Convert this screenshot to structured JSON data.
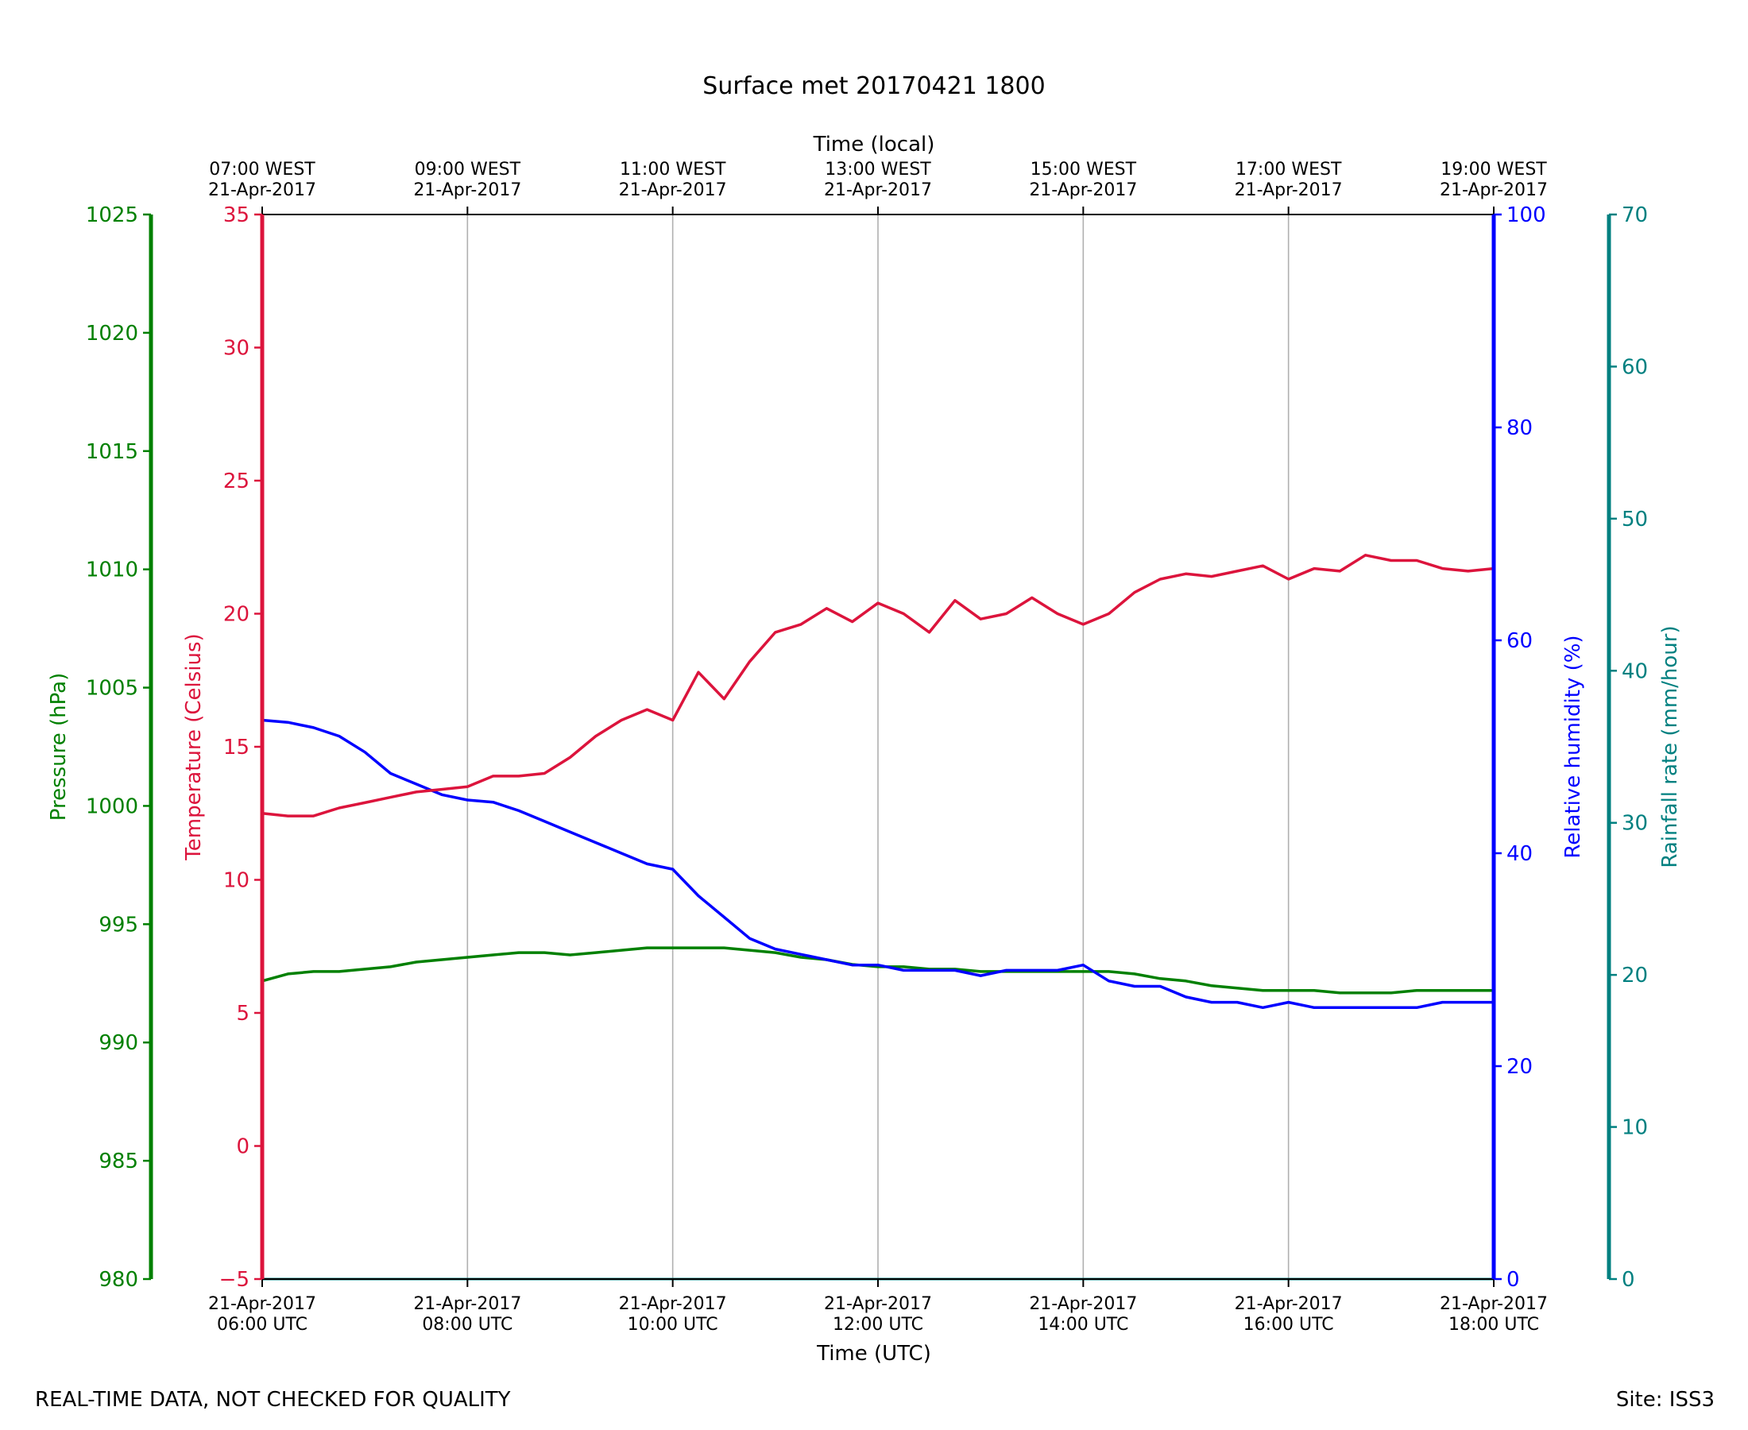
{
  "chart_data": {
    "type": "line",
    "title": "Surface met 20170421 1800",
    "footer_left": "REAL-TIME DATA, NOT CHECKED FOR QUALITY",
    "footer_right": "Site: ISS3",
    "xlabel_bottom": "Time (UTC)",
    "xlabel_top": "Time (local)",
    "x_range_hours_utc": [
      6,
      18
    ],
    "x_ticks_bottom": [
      {
        "hour": 6,
        "line1": "21-Apr-2017",
        "line2": "06:00 UTC"
      },
      {
        "hour": 8,
        "line1": "21-Apr-2017",
        "line2": "08:00 UTC"
      },
      {
        "hour": 10,
        "line1": "21-Apr-2017",
        "line2": "10:00 UTC"
      },
      {
        "hour": 12,
        "line1": "21-Apr-2017",
        "line2": "12:00 UTC"
      },
      {
        "hour": 14,
        "line1": "21-Apr-2017",
        "line2": "14:00 UTC"
      },
      {
        "hour": 16,
        "line1": "21-Apr-2017",
        "line2": "16:00 UTC"
      },
      {
        "hour": 18,
        "line1": "21-Apr-2017",
        "line2": "18:00 UTC"
      }
    ],
    "x_ticks_top": [
      {
        "hour": 6,
        "line1": "07:00 WEST",
        "line2": "21-Apr-2017"
      },
      {
        "hour": 8,
        "line1": "09:00 WEST",
        "line2": "21-Apr-2017"
      },
      {
        "hour": 10,
        "line1": "11:00 WEST",
        "line2": "21-Apr-2017"
      },
      {
        "hour": 12,
        "line1": "13:00 WEST",
        "line2": "21-Apr-2017"
      },
      {
        "hour": 14,
        "line1": "15:00 WEST",
        "line2": "21-Apr-2017"
      },
      {
        "hour": 16,
        "line1": "17:00 WEST",
        "line2": "21-Apr-2017"
      },
      {
        "hour": 18,
        "line1": "19:00 WEST",
        "line2": "21-Apr-2017"
      }
    ],
    "grid_vertical": true,
    "axes": {
      "pressure": {
        "label": "Pressure (hPa)",
        "color": "#008000",
        "ylim": [
          980,
          1025
        ],
        "ticks": [
          980,
          985,
          990,
          995,
          1000,
          1005,
          1010,
          1015,
          1020,
          1025
        ]
      },
      "temperature": {
        "label": "Temperature (Celsius)",
        "color": "#dc143c",
        "ylim": [
          -5,
          35
        ],
        "ticks": [
          -5,
          0,
          5,
          10,
          15,
          20,
          25,
          30,
          35
        ]
      },
      "humidity": {
        "label": "Relative humidity (%)",
        "color": "#0000ff",
        "ylim": [
          0,
          100
        ],
        "ticks": [
          0,
          20,
          40,
          60,
          80,
          100
        ]
      },
      "rainfall": {
        "label": "Rainfall rate (mm/hour)",
        "color": "#008080",
        "ylim": [
          0,
          70
        ],
        "ticks": [
          0,
          10,
          20,
          30,
          40,
          50,
          60,
          70
        ]
      }
    },
    "series": [
      {
        "name": "Temperature (Celsius)",
        "axis": "temperature",
        "color": "#dc143c",
        "x": [
          6.0,
          6.25,
          6.5,
          6.75,
          7.0,
          7.25,
          7.5,
          7.75,
          8.0,
          8.25,
          8.5,
          8.75,
          9.0,
          9.25,
          9.5,
          9.75,
          10.0,
          10.25,
          10.5,
          10.75,
          11.0,
          11.25,
          11.5,
          11.75,
          12.0,
          12.25,
          12.5,
          12.75,
          13.0,
          13.25,
          13.5,
          13.75,
          14.0,
          14.25,
          14.5,
          14.75,
          15.0,
          15.25,
          15.5,
          15.75,
          16.0,
          16.25,
          16.5,
          16.75,
          17.0,
          17.25,
          17.5,
          17.75,
          18.0
        ],
        "values": [
          12.5,
          12.4,
          12.4,
          12.7,
          12.9,
          13.1,
          13.3,
          13.4,
          13.5,
          13.9,
          13.9,
          14.0,
          14.6,
          15.4,
          16.0,
          16.4,
          16.0,
          17.8,
          16.8,
          18.2,
          19.3,
          19.6,
          20.2,
          19.7,
          20.4,
          20.0,
          19.3,
          20.5,
          19.8,
          20.0,
          20.6,
          20.0,
          19.6,
          20.0,
          20.8,
          21.3,
          21.5,
          21.4,
          21.6,
          21.8,
          21.3,
          21.7,
          21.6,
          22.2,
          22.0,
          22.0,
          21.7,
          21.6,
          21.7
        ]
      },
      {
        "name": "Relative humidity (%)",
        "axis": "humidity",
        "color": "#0000ff",
        "x": [
          6.0,
          6.25,
          6.5,
          6.75,
          7.0,
          7.25,
          7.5,
          7.75,
          8.0,
          8.25,
          8.5,
          8.75,
          9.0,
          9.25,
          9.5,
          9.75,
          10.0,
          10.25,
          10.5,
          10.75,
          11.0,
          11.25,
          11.5,
          11.75,
          12.0,
          12.25,
          12.5,
          12.75,
          13.0,
          13.25,
          13.5,
          13.75,
          14.0,
          14.25,
          14.5,
          14.75,
          15.0,
          15.25,
          15.5,
          15.75,
          16.0,
          16.25,
          16.5,
          16.75,
          17.0,
          17.25,
          17.5,
          17.75,
          18.0
        ],
        "values": [
          52.5,
          52.3,
          51.8,
          51.0,
          49.5,
          47.5,
          46.5,
          45.5,
          45.0,
          44.8,
          44.0,
          43.0,
          42.0,
          41.0,
          40.0,
          39.0,
          38.5,
          36.0,
          34.0,
          32.0,
          31.0,
          30.5,
          30.0,
          29.5,
          29.5,
          29.0,
          29.0,
          29.0,
          28.5,
          29.0,
          29.0,
          29.0,
          29.5,
          28.0,
          27.5,
          27.5,
          26.5,
          26.0,
          26.0,
          25.5,
          26.0,
          25.5,
          25.5,
          25.5,
          25.5,
          25.5,
          26.0,
          26.0,
          26.0
        ]
      },
      {
        "name": "Pressure (hPa)",
        "axis": "pressure",
        "color": "#008000",
        "x": [
          6.0,
          6.25,
          6.5,
          6.75,
          7.0,
          7.25,
          7.5,
          7.75,
          8.0,
          8.25,
          8.5,
          8.75,
          9.0,
          9.25,
          9.5,
          9.75,
          10.0,
          10.25,
          10.5,
          10.75,
          11.0,
          11.25,
          11.5,
          11.75,
          12.0,
          12.25,
          12.5,
          12.75,
          13.0,
          13.25,
          13.5,
          13.75,
          14.0,
          14.25,
          14.5,
          14.75,
          15.0,
          15.25,
          15.5,
          15.75,
          16.0,
          16.25,
          16.5,
          16.75,
          17.0,
          17.25,
          17.5,
          17.75,
          18.0
        ],
        "values": [
          992.6,
          992.9,
          993.0,
          993.0,
          993.1,
          993.2,
          993.4,
          993.5,
          993.6,
          993.7,
          993.8,
          993.8,
          993.7,
          993.8,
          993.9,
          994.0,
          994.0,
          994.0,
          994.0,
          993.9,
          993.8,
          993.6,
          993.5,
          993.3,
          993.2,
          993.2,
          993.1,
          993.1,
          993.0,
          993.0,
          993.0,
          993.0,
          993.0,
          993.0,
          992.9,
          992.7,
          992.6,
          992.4,
          992.3,
          992.2,
          992.2,
          992.2,
          992.1,
          992.1,
          992.1,
          992.2,
          992.2,
          992.2,
          992.2
        ]
      },
      {
        "name": "Rainfall rate (mm/hour)",
        "axis": "rainfall",
        "color": "#008080",
        "x": [
          6.0,
          18.0
        ],
        "values": [
          0.0,
          0.0
        ]
      }
    ]
  }
}
